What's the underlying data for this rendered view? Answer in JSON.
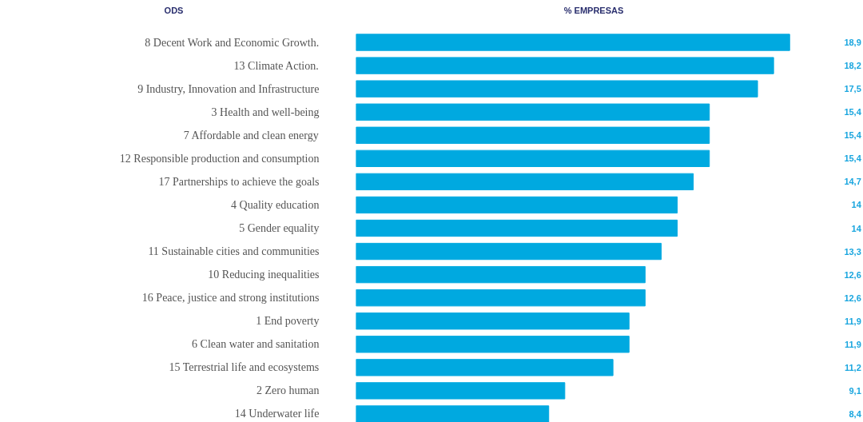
{
  "chart_data": {
    "type": "bar",
    "orientation": "horizontal",
    "title": "% EMPRESAS",
    "annotations": [
      "ODS"
    ],
    "tick_labels": "y",
    "categories": [
      "8 Decent Work and Economic Growth.",
      "13 Climate Action.",
      "9 Industry, Innovation and Infrastructure",
      "3 Health and well-being",
      "7 Affordable and clean energy",
      "12 Responsible production and consumption",
      "17 Partnerships to achieve the goals",
      "4 Quality education",
      "5 Gender equality",
      "11 Sustainable cities and communities",
      "10 Reducing inequalities",
      "16 Peace, justice and strong institutions",
      "1 End poverty",
      "6 Clean water and sanitation",
      "15 Terrestrial life and ecosystems",
      "2 Zero human",
      "14 Underwater life"
    ],
    "values": [
      18.9,
      18.2,
      17.5,
      15.4,
      15.4,
      15.4,
      14.7,
      14,
      14,
      13.3,
      12.6,
      12.6,
      11.9,
      11.9,
      11.2,
      9.1,
      8.4
    ],
    "value_labels": [
      "18,9",
      "18,2",
      "17,5",
      "15,4",
      "15,4",
      "15,4",
      "14,7",
      "14",
      "14",
      "13,3",
      "12,6",
      "12,6",
      "11,9",
      "11,9",
      "11,2",
      "9,1",
      "8,4"
    ],
    "color": "#00a9e0"
  }
}
